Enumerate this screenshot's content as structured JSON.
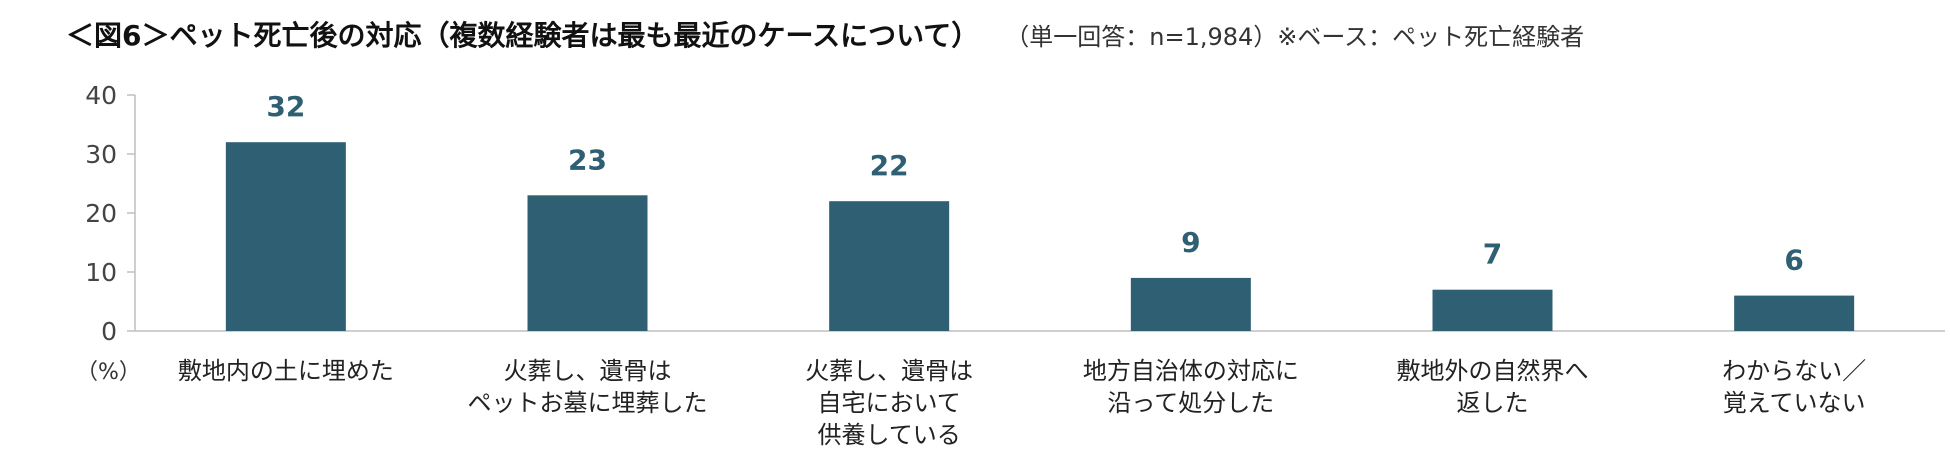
{
  "header": {
    "title": "＜図6＞ペット死亡後の対応（複数経験者は最も最近のケースについて）",
    "subtitle": "（単一回答：n=1,984）※ベース：ペット死亡経験者"
  },
  "chart_data": {
    "type": "bar",
    "categories": [
      [
        "敷地内の土に埋めた"
      ],
      [
        "火葬し、遺骨は",
        "ペットお墓に埋葬した"
      ],
      [
        "火葬し、遺骨は",
        "自宅において",
        "供養している"
      ],
      [
        "地方自治体の対応に",
        "沿って処分した"
      ],
      [
        "敷地外の自然界へ",
        "返した"
      ],
      [
        "わからない／",
        "覚えていない"
      ]
    ],
    "values": [
      32,
      23,
      22,
      9,
      7,
      6
    ],
    "data_labels": [
      "32",
      "23",
      "22",
      "9",
      "7",
      "6"
    ],
    "ylim": [
      0,
      40
    ],
    "yticks": [
      "0",
      "10",
      "20",
      "30",
      "40"
    ],
    "unit_label": "（%）",
    "bar_color": "#2e5f73",
    "grid": false
  }
}
